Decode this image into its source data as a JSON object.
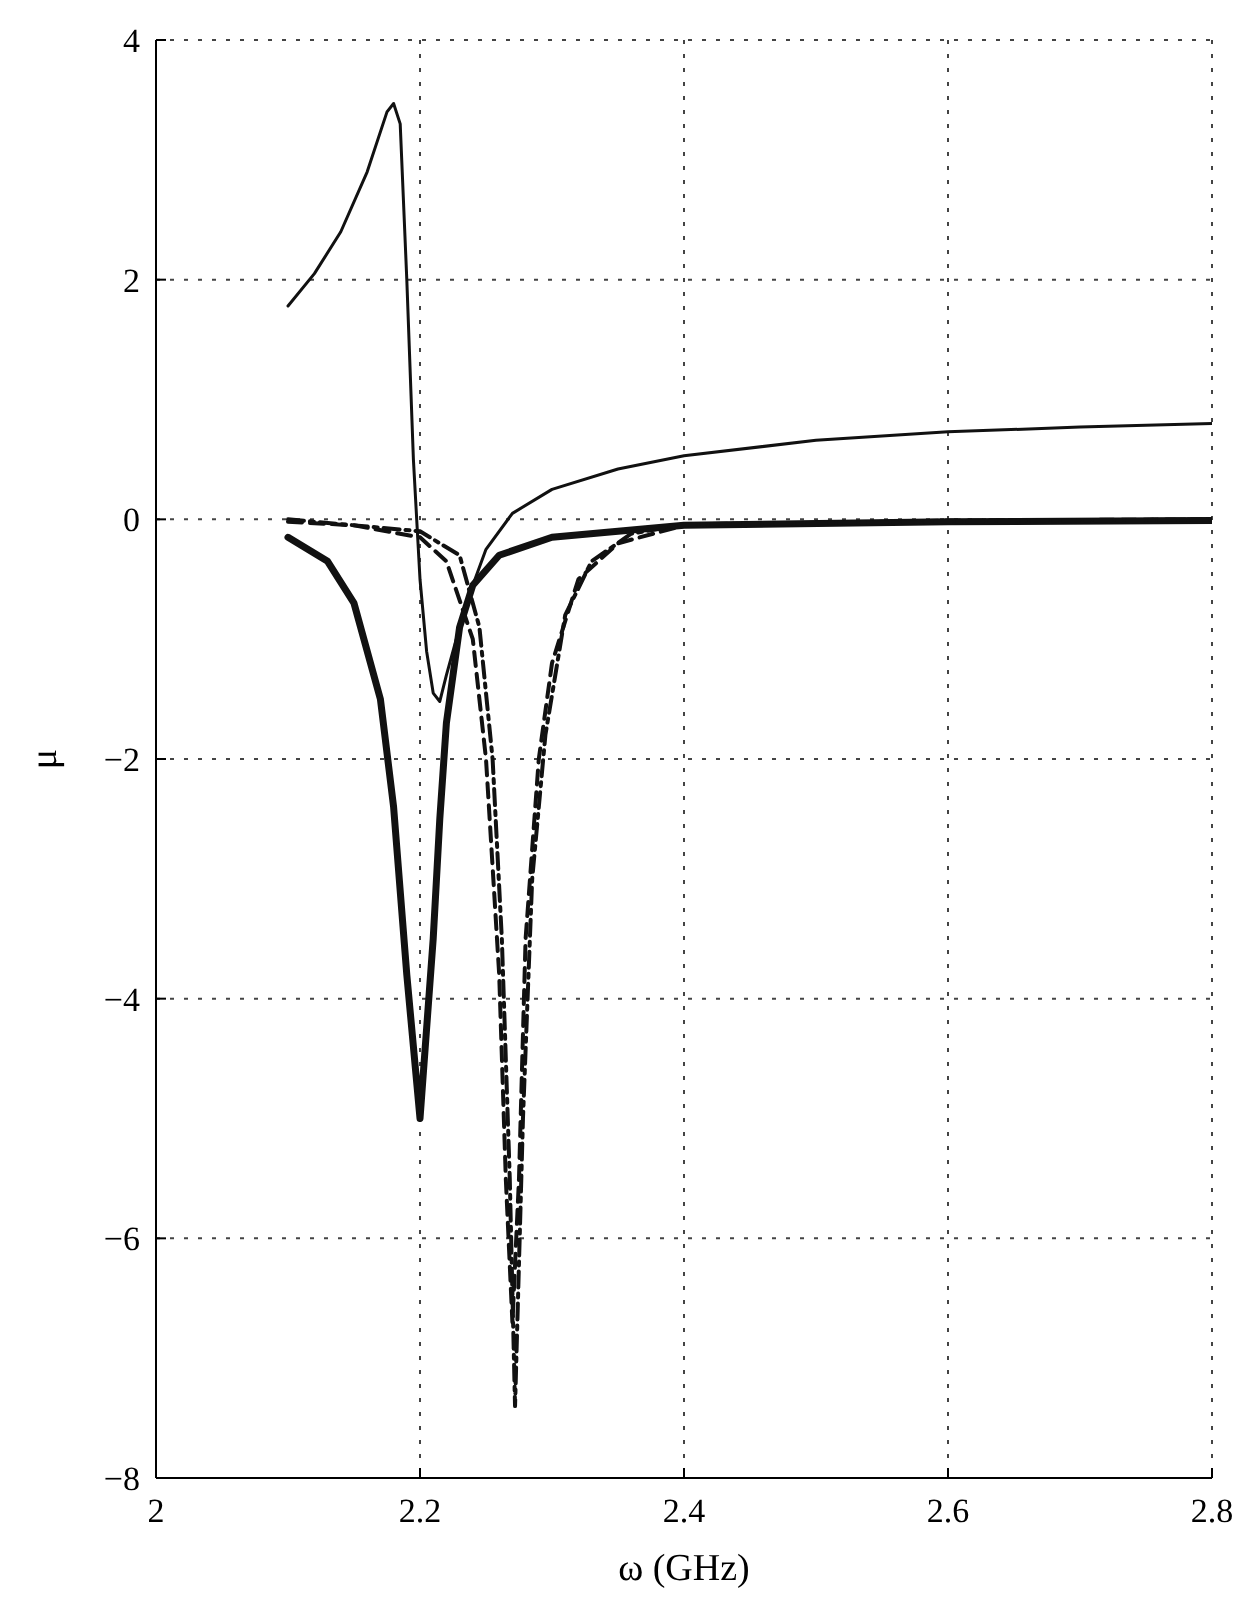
{
  "chart_data": {
    "type": "line",
    "xlabel": "ω (GHz)",
    "ylabel": "μ",
    "xlim": [
      2,
      2.8
    ],
    "ylim": [
      -8,
      4
    ],
    "xticks": [
      2,
      2.2,
      2.4,
      2.6,
      2.8
    ],
    "yticks": [
      -8,
      -6,
      -4,
      -2,
      0,
      2,
      4
    ],
    "grid": true,
    "series": [
      {
        "color": "#111111",
        "line_style": "solid",
        "x": [
          2.1,
          2.12,
          2.14,
          2.16,
          2.175,
          2.18,
          2.185,
          2.19,
          2.195,
          2.2,
          2.205,
          2.21,
          2.215,
          2.22,
          2.23,
          2.24,
          2.25,
          2.27,
          2.3,
          2.35,
          2.4,
          2.5,
          2.6,
          2.7,
          2.8
        ],
        "values": [
          1.78,
          2.05,
          2.4,
          2.9,
          3.4,
          3.47,
          3.3,
          2.0,
          0.5,
          -0.5,
          -1.1,
          -1.45,
          -1.52,
          -1.3,
          -0.9,
          -0.55,
          -0.25,
          0.05,
          0.25,
          0.42,
          0.53,
          0.66,
          0.73,
          0.77,
          0.8
        ]
      },
      {
        "color": "#111111",
        "line_style": "solid",
        "x": [
          2.1,
          2.13,
          2.15,
          2.17,
          2.18,
          2.19,
          2.2,
          2.21,
          2.215,
          2.22,
          2.23,
          2.24,
          2.26,
          2.3,
          2.4,
          2.6,
          2.8
        ],
        "values": [
          -0.15,
          -0.35,
          -0.7,
          -1.5,
          -2.4,
          -3.8,
          -5.0,
          -3.5,
          -2.5,
          -1.7,
          -0.9,
          -0.55,
          -0.3,
          -0.15,
          -0.05,
          -0.02,
          -0.01
        ]
      },
      {
        "color": "#111111",
        "line_style": "dashed",
        "x": [
          2.1,
          2.15,
          2.2,
          2.22,
          2.24,
          2.25,
          2.26,
          2.265,
          2.27,
          2.275,
          2.28,
          2.29,
          2.3,
          2.32,
          2.35,
          2.4,
          2.6,
          2.8
        ],
        "values": [
          -0.02,
          -0.05,
          -0.15,
          -0.35,
          -1.0,
          -2.0,
          -3.8,
          -5.5,
          -6.7,
          -5.5,
          -3.5,
          -2.0,
          -1.2,
          -0.5,
          -0.2,
          -0.05,
          -0.01,
          0
        ]
      },
      {
        "color": "#111111",
        "line_style": "dashdot",
        "x": [
          2.1,
          2.2,
          2.23,
          2.245,
          2.255,
          2.262,
          2.268,
          2.272,
          2.278,
          2.285,
          2.295,
          2.31,
          2.33,
          2.36,
          2.4,
          2.8
        ],
        "values": [
          0,
          -0.1,
          -0.3,
          -0.9,
          -2.0,
          -3.5,
          -5.5,
          -7.4,
          -5.0,
          -3.0,
          -1.8,
          -0.8,
          -0.35,
          -0.12,
          -0.04,
          0
        ]
      }
    ]
  }
}
